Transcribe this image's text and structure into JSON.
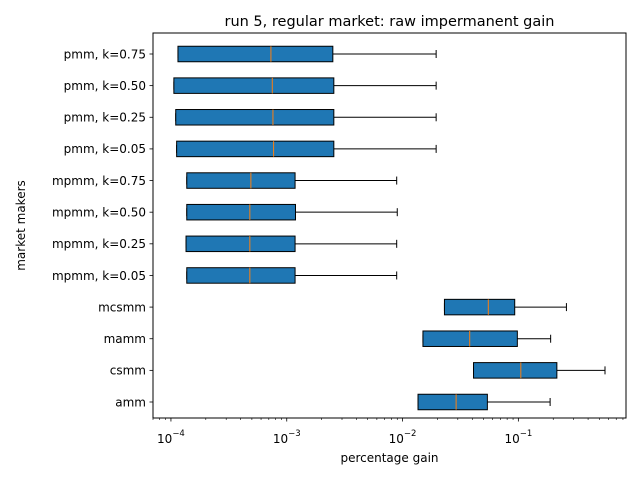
{
  "chart_data": {
    "type": "boxplot",
    "orientation": "horizontal",
    "title": "run 5, regular market: raw impermanent gain",
    "xlabel": "percentage gain",
    "ylabel": "market makers",
    "xscale": "log",
    "xlim": [
      7e-05,
      0.85
    ],
    "xticks": [
      {
        "value": 0.0001,
        "base": "10",
        "exp": "−4"
      },
      {
        "value": 0.001,
        "base": "10",
        "exp": "−3"
      },
      {
        "value": 0.01,
        "base": "10",
        "exp": "−2"
      },
      {
        "value": 0.1,
        "base": "10",
        "exp": "−1"
      }
    ],
    "grid": false,
    "legend": "none",
    "box_color": "#1f77b4",
    "median_color": "#ff7f0e",
    "series": [
      {
        "name": "amm",
        "whislo": 0.0136,
        "q1": 0.0136,
        "med": 0.029,
        "q3": 0.054,
        "whishi": 0.188
      },
      {
        "name": "csmm",
        "whislo": 0.041,
        "q1": 0.041,
        "med": 0.105,
        "q3": 0.215,
        "whishi": 0.56
      },
      {
        "name": "mamm",
        "whislo": 0.015,
        "q1": 0.015,
        "med": 0.038,
        "q3": 0.098,
        "whishi": 0.19
      },
      {
        "name": "mcsmm",
        "whislo": 0.023,
        "q1": 0.023,
        "med": 0.055,
        "q3": 0.093,
        "whishi": 0.26
      },
      {
        "name": "mpmm, k=0.05",
        "whislo": 0.000137,
        "q1": 0.000137,
        "med": 0.00048,
        "q3": 0.00118,
        "whishi": 0.0089
      },
      {
        "name": "mpmm, k=0.25",
        "whislo": 0.000135,
        "q1": 0.000135,
        "med": 0.00048,
        "q3": 0.00118,
        "whishi": 0.0089
      },
      {
        "name": "mpmm, k=0.50",
        "whislo": 0.000137,
        "q1": 0.000137,
        "med": 0.00048,
        "q3": 0.00119,
        "whishi": 0.009
      },
      {
        "name": "mpmm, k=0.75",
        "whislo": 0.000137,
        "q1": 0.000137,
        "med": 0.00049,
        "q3": 0.00118,
        "whishi": 0.0089
      },
      {
        "name": "pmm, k=0.05",
        "whislo": 0.000112,
        "q1": 0.000112,
        "med": 0.00077,
        "q3": 0.00255,
        "whishi": 0.0195
      },
      {
        "name": "pmm, k=0.25",
        "whislo": 0.00011,
        "q1": 0.00011,
        "med": 0.00076,
        "q3": 0.00255,
        "whishi": 0.0195
      },
      {
        "name": "pmm, k=0.50",
        "whislo": 0.000106,
        "q1": 0.000106,
        "med": 0.00075,
        "q3": 0.00255,
        "whishi": 0.0195
      },
      {
        "name": "pmm, k=0.75",
        "whislo": 0.000115,
        "q1": 0.000115,
        "med": 0.00073,
        "q3": 0.0025,
        "whishi": 0.0195
      }
    ]
  }
}
